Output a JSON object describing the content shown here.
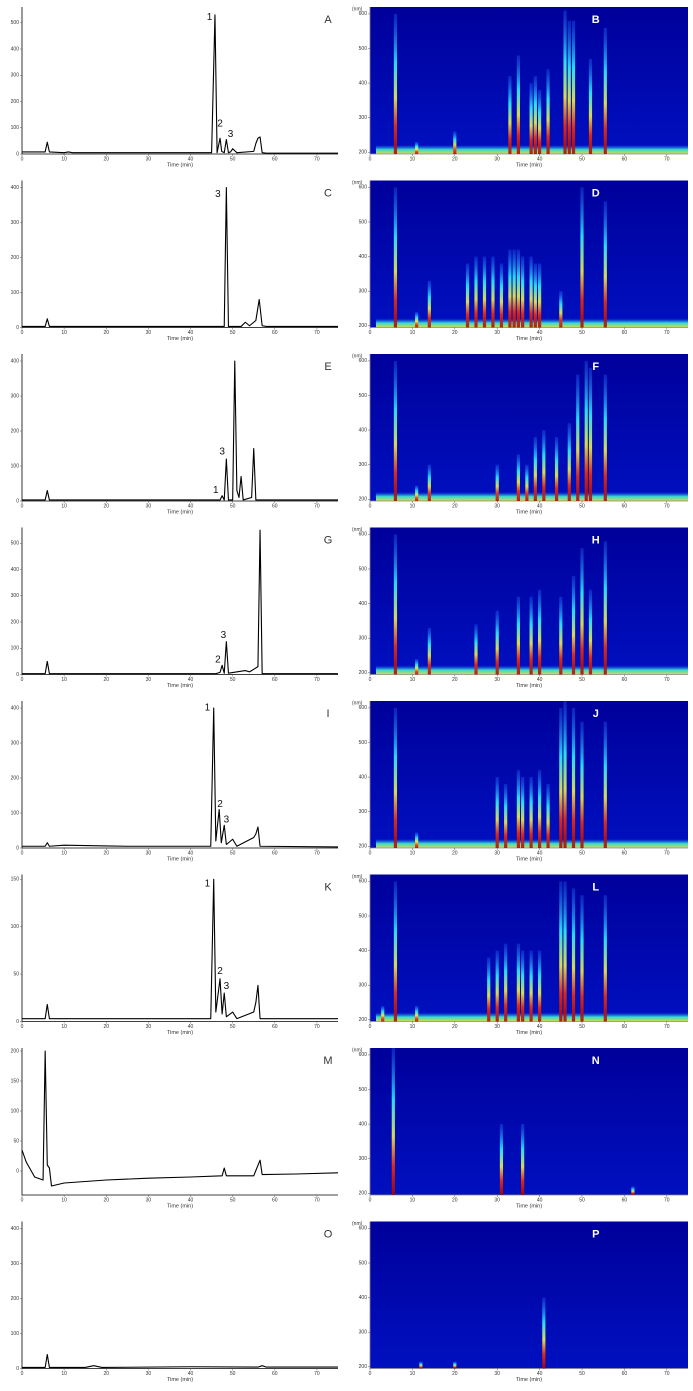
{
  "chart_data": [
    {
      "type": "line",
      "label": "A",
      "x_label": "Time (min)",
      "color": "#000000",
      "x": [
        0,
        5.5,
        6,
        6.5,
        10,
        11,
        12,
        45,
        45.8,
        46.3,
        47,
        47.4,
        48,
        48.5,
        49,
        49.5,
        50,
        51,
        55,
        55.5,
        56,
        56.5,
        57,
        58,
        75
      ],
      "values": [
        8,
        8,
        45,
        8,
        5,
        8,
        5,
        5,
        530,
        5,
        60,
        10,
        5,
        55,
        5,
        8,
        20,
        5,
        10,
        40,
        60,
        65,
        5,
        3,
        3
      ],
      "xlim": [
        0,
        75
      ],
      "xticks": [
        0,
        10,
        20,
        30,
        40,
        50,
        60,
        70
      ],
      "ylim": [
        0,
        560
      ],
      "yticks": [
        0,
        100,
        200,
        300,
        400,
        500
      ],
      "annotations": [
        {
          "text": "1",
          "x": 44.5,
          "y": 520
        },
        {
          "text": "2",
          "x": 47,
          "y": 115
        },
        {
          "text": "3",
          "x": 49.5,
          "y": 75
        }
      ]
    },
    {
      "type": "heatmap",
      "label": "B",
      "x_label": "Time (min)",
      "y_label": "(nm)",
      "baseline_band": true,
      "x": [
        6,
        11,
        20,
        33,
        35,
        38,
        39,
        40,
        42,
        46,
        47,
        48,
        52,
        55.5
      ],
      "values": [
        600,
        230,
        260,
        420,
        480,
        400,
        420,
        380,
        440,
        610,
        580,
        580,
        470,
        560
      ],
      "xlim": [
        0,
        75
      ],
      "xticks": [
        0,
        10,
        20,
        30,
        40,
        50,
        60,
        70
      ],
      "ylim": [
        195,
        620
      ],
      "yticks": [
        200,
        300,
        400,
        500,
        600
      ]
    },
    {
      "type": "line",
      "label": "C",
      "x_label": "Time (min)",
      "color": "#000000",
      "x": [
        0,
        5.5,
        6,
        6.5,
        45,
        48,
        48.5,
        49,
        52,
        53,
        54,
        55.5,
        56.3,
        57,
        58,
        75
      ],
      "values": [
        3,
        3,
        25,
        3,
        3,
        3,
        400,
        3,
        3,
        15,
        5,
        20,
        80,
        5,
        3,
        3
      ],
      "xlim": [
        0,
        75
      ],
      "xticks": [
        0,
        10,
        20,
        30,
        40,
        50,
        60,
        70
      ],
      "ylim": [
        0,
        420
      ],
      "yticks": [
        0,
        100,
        200,
        300,
        400
      ],
      "annotations": [
        {
          "text": "3",
          "x": 46.5,
          "y": 380
        }
      ]
    },
    {
      "type": "heatmap",
      "label": "D",
      "x_label": "Time (min)",
      "y_label": "(nm)",
      "baseline_band": true,
      "x": [
        6,
        11,
        14,
        23,
        25,
        27,
        29,
        31,
        33,
        34,
        35,
        36,
        38,
        39,
        40,
        45,
        50,
        55.5
      ],
      "values": [
        600,
        240,
        330,
        380,
        400,
        400,
        400,
        380,
        420,
        420,
        420,
        400,
        400,
        380,
        380,
        300,
        600,
        560
      ],
      "xlim": [
        0,
        75
      ],
      "xticks": [
        0,
        10,
        20,
        30,
        40,
        50,
        60,
        70
      ],
      "ylim": [
        195,
        620
      ],
      "yticks": [
        200,
        300,
        400,
        500,
        600
      ]
    },
    {
      "type": "line",
      "label": "E",
      "x_label": "Time (min)",
      "color": "#000000",
      "x": [
        0,
        5.5,
        6,
        6.5,
        47,
        47.5,
        48,
        48.5,
        49,
        50,
        50.5,
        51,
        51.5,
        52,
        52.5,
        54.5,
        55,
        55.5,
        75
      ],
      "values": [
        3,
        3,
        30,
        3,
        3,
        15,
        3,
        120,
        3,
        3,
        400,
        30,
        10,
        70,
        3,
        10,
        150,
        3,
        3
      ],
      "xlim": [
        0,
        75
      ],
      "xticks": [
        0,
        10,
        20,
        30,
        40,
        50,
        60,
        70
      ],
      "ylim": [
        0,
        420
      ],
      "yticks": [
        0,
        100,
        200,
        300,
        400
      ],
      "annotations": [
        {
          "text": "1",
          "x": 46,
          "y": 30
        },
        {
          "text": "3",
          "x": 47.5,
          "y": 140
        }
      ]
    },
    {
      "type": "heatmap",
      "label": "F",
      "x_label": "Time (min)",
      "y_label": "(nm)",
      "baseline_band": true,
      "x": [
        6,
        11,
        14,
        30,
        35,
        37,
        39,
        41,
        44,
        47,
        49,
        51,
        52,
        55.5
      ],
      "values": [
        600,
        240,
        300,
        300,
        330,
        300,
        380,
        400,
        380,
        420,
        560,
        600,
        580,
        560
      ],
      "xlim": [
        0,
        75
      ],
      "xticks": [
        0,
        10,
        20,
        30,
        40,
        50,
        60,
        70
      ],
      "ylim": [
        195,
        620
      ],
      "yticks": [
        200,
        300,
        400,
        500,
        600
      ]
    },
    {
      "type": "line",
      "label": "G",
      "x_label": "Time (min)",
      "color": "#000000",
      "x": [
        0,
        5.5,
        6,
        6.5,
        46,
        47,
        47.5,
        48,
        48.5,
        49,
        53,
        54,
        56,
        56.5,
        57,
        75
      ],
      "values": [
        3,
        3,
        50,
        3,
        3,
        8,
        35,
        5,
        125,
        5,
        15,
        10,
        30,
        550,
        3,
        3
      ],
      "xlim": [
        0,
        75
      ],
      "xticks": [
        0,
        10,
        20,
        30,
        40,
        50,
        60,
        70
      ],
      "ylim": [
        0,
        560
      ],
      "yticks": [
        0,
        100,
        200,
        300,
        400,
        500
      ],
      "annotations": [
        {
          "text": "2",
          "x": 46.5,
          "y": 55
        },
        {
          "text": "3",
          "x": 47.8,
          "y": 150
        }
      ]
    },
    {
      "type": "heatmap",
      "label": "H",
      "x_label": "Time (min)",
      "y_label": "(nm)",
      "baseline_band": true,
      "x": [
        6,
        11,
        14,
        25,
        30,
        35,
        38,
        40,
        45,
        48,
        50,
        52,
        55.5
      ],
      "values": [
        600,
        240,
        330,
        340,
        380,
        420,
        420,
        440,
        420,
        480,
        560,
        440,
        580
      ],
      "xlim": [
        0,
        75
      ],
      "xticks": [
        0,
        10,
        20,
        30,
        40,
        50,
        60,
        70
      ],
      "ylim": [
        195,
        620
      ],
      "yticks": [
        200,
        300,
        400,
        500,
        600
      ]
    },
    {
      "type": "line",
      "label": "I",
      "x_label": "Time (min)",
      "color": "#000000",
      "x": [
        0,
        5.5,
        6,
        6.5,
        10,
        20,
        25,
        44.8,
        45.5,
        46,
        46.8,
        47.3,
        48,
        48.5,
        50,
        51,
        55,
        55.5,
        56,
        56.5,
        75
      ],
      "values": [
        5,
        5,
        15,
        5,
        8,
        6,
        5,
        5,
        400,
        20,
        110,
        15,
        65,
        10,
        25,
        5,
        30,
        40,
        60,
        5,
        3
      ],
      "xlim": [
        0,
        75
      ],
      "xticks": [
        0,
        10,
        20,
        30,
        40,
        50,
        60,
        70
      ],
      "ylim": [
        0,
        420
      ],
      "yticks": [
        0,
        100,
        200,
        300,
        400
      ],
      "annotations": [
        {
          "text": "1",
          "x": 44,
          "y": 400
        },
        {
          "text": "2",
          "x": 47,
          "y": 125
        },
        {
          "text": "3",
          "x": 48.5,
          "y": 80
        }
      ]
    },
    {
      "type": "heatmap",
      "label": "J",
      "x_label": "Time (min)",
      "y_label": "(nm)",
      "baseline_band": true,
      "x": [
        6,
        11,
        30,
        32,
        35,
        36,
        38,
        40,
        42,
        45,
        46,
        48,
        50,
        55.5
      ],
      "values": [
        600,
        240,
        400,
        380,
        420,
        400,
        400,
        420,
        380,
        600,
        620,
        600,
        560,
        560
      ],
      "xlim": [
        0,
        75
      ],
      "xticks": [
        0,
        10,
        20,
        30,
        40,
        50,
        60,
        70
      ],
      "ylim": [
        195,
        620
      ],
      "yticks": [
        200,
        300,
        400,
        500,
        600
      ]
    },
    {
      "type": "line",
      "label": "K",
      "x_label": "Time (min)",
      "color": "#000000",
      "x": [
        0,
        5.5,
        6,
        6.5,
        44.8,
        45.5,
        46,
        47,
        47.5,
        48,
        48.5,
        50,
        51,
        55,
        55.5,
        56,
        56.5,
        75
      ],
      "values": [
        3,
        3,
        18,
        3,
        3,
        150,
        10,
        45,
        8,
        30,
        5,
        10,
        3,
        10,
        20,
        38,
        3,
        3
      ],
      "xlim": [
        0,
        75
      ],
      "xticks": [
        0,
        10,
        20,
        30,
        40,
        50,
        60,
        70
      ],
      "ylim": [
        0,
        155
      ],
      "yticks": [
        0,
        50,
        100,
        150
      ],
      "annotations": [
        {
          "text": "1",
          "x": 44,
          "y": 145
        },
        {
          "text": "2",
          "x": 47,
          "y": 53
        },
        {
          "text": "3",
          "x": 48.5,
          "y": 37
        }
      ]
    },
    {
      "type": "heatmap",
      "label": "L",
      "x_label": "Time (min)",
      "y_label": "(nm)",
      "baseline_band": true,
      "x": [
        3,
        6,
        11,
        28,
        30,
        32,
        35,
        36,
        38,
        40,
        45,
        46,
        48,
        50,
        55.5
      ],
      "values": [
        240,
        600,
        240,
        380,
        400,
        420,
        420,
        400,
        400,
        400,
        600,
        600,
        580,
        560,
        560
      ],
      "xlim": [
        0,
        75
      ],
      "xticks": [
        0,
        10,
        20,
        30,
        40,
        50,
        60,
        70
      ],
      "ylim": [
        195,
        620
      ],
      "yticks": [
        200,
        300,
        400,
        500,
        600
      ]
    },
    {
      "type": "line",
      "label": "M",
      "x_label": "Time (min)",
      "color": "#000000",
      "x": [
        0,
        1,
        3,
        5,
        5.5,
        6,
        6.5,
        7,
        10,
        20,
        30,
        40,
        47.5,
        48,
        48.5,
        55,
        56.5,
        57,
        65,
        75
      ],
      "values": [
        35,
        15,
        -10,
        -15,
        200,
        10,
        5,
        -25,
        -20,
        -15,
        -12,
        -10,
        -8,
        5,
        -8,
        -8,
        18,
        -6,
        -5,
        -3
      ],
      "xlim": [
        0,
        75
      ],
      "xticks": [
        0,
        10,
        20,
        30,
        40,
        50,
        60,
        70
      ],
      "ylim": [
        -40,
        205
      ],
      "yticks": [
        0,
        50,
        100,
        150,
        200
      ],
      "annotations": []
    },
    {
      "type": "heatmap",
      "label": "N",
      "x_label": "Time (min)",
      "y_label": "(nm)",
      "baseline_band": false,
      "x": [
        5.5,
        31,
        36,
        62
      ],
      "values": [
        620,
        400,
        400,
        220
      ],
      "xlim": [
        0,
        75
      ],
      "xticks": [
        0,
        10,
        20,
        30,
        40,
        50,
        60,
        70
      ],
      "ylim": [
        195,
        620
      ],
      "yticks": [
        200,
        300,
        400,
        500,
        600
      ]
    },
    {
      "type": "line",
      "label": "O",
      "x_label": "Time (min)",
      "color": "#000000",
      "x": [
        0,
        5.5,
        6,
        6.5,
        15,
        17,
        19,
        40,
        56,
        57,
        58,
        75
      ],
      "values": [
        3,
        3,
        40,
        3,
        3,
        8,
        3,
        5,
        4,
        8,
        4,
        4
      ],
      "xlim": [
        0,
        75
      ],
      "xticks": [
        0,
        10,
        20,
        30,
        40,
        50,
        60,
        70
      ],
      "ylim": [
        0,
        420
      ],
      "yticks": [
        0,
        100,
        200,
        300,
        400
      ],
      "annotations": []
    },
    {
      "type": "heatmap",
      "label": "P",
      "x_label": "Time (min)",
      "y_label": "(nm)",
      "baseline_band": false,
      "x": [
        12,
        20,
        41
      ],
      "values": [
        215,
        215,
        400
      ],
      "xlim": [
        0,
        75
      ],
      "xticks": [
        0,
        10,
        20,
        30,
        40,
        50,
        60,
        70
      ],
      "ylim": [
        195,
        620
      ],
      "yticks": [
        200,
        300,
        400,
        500,
        600
      ]
    }
  ]
}
